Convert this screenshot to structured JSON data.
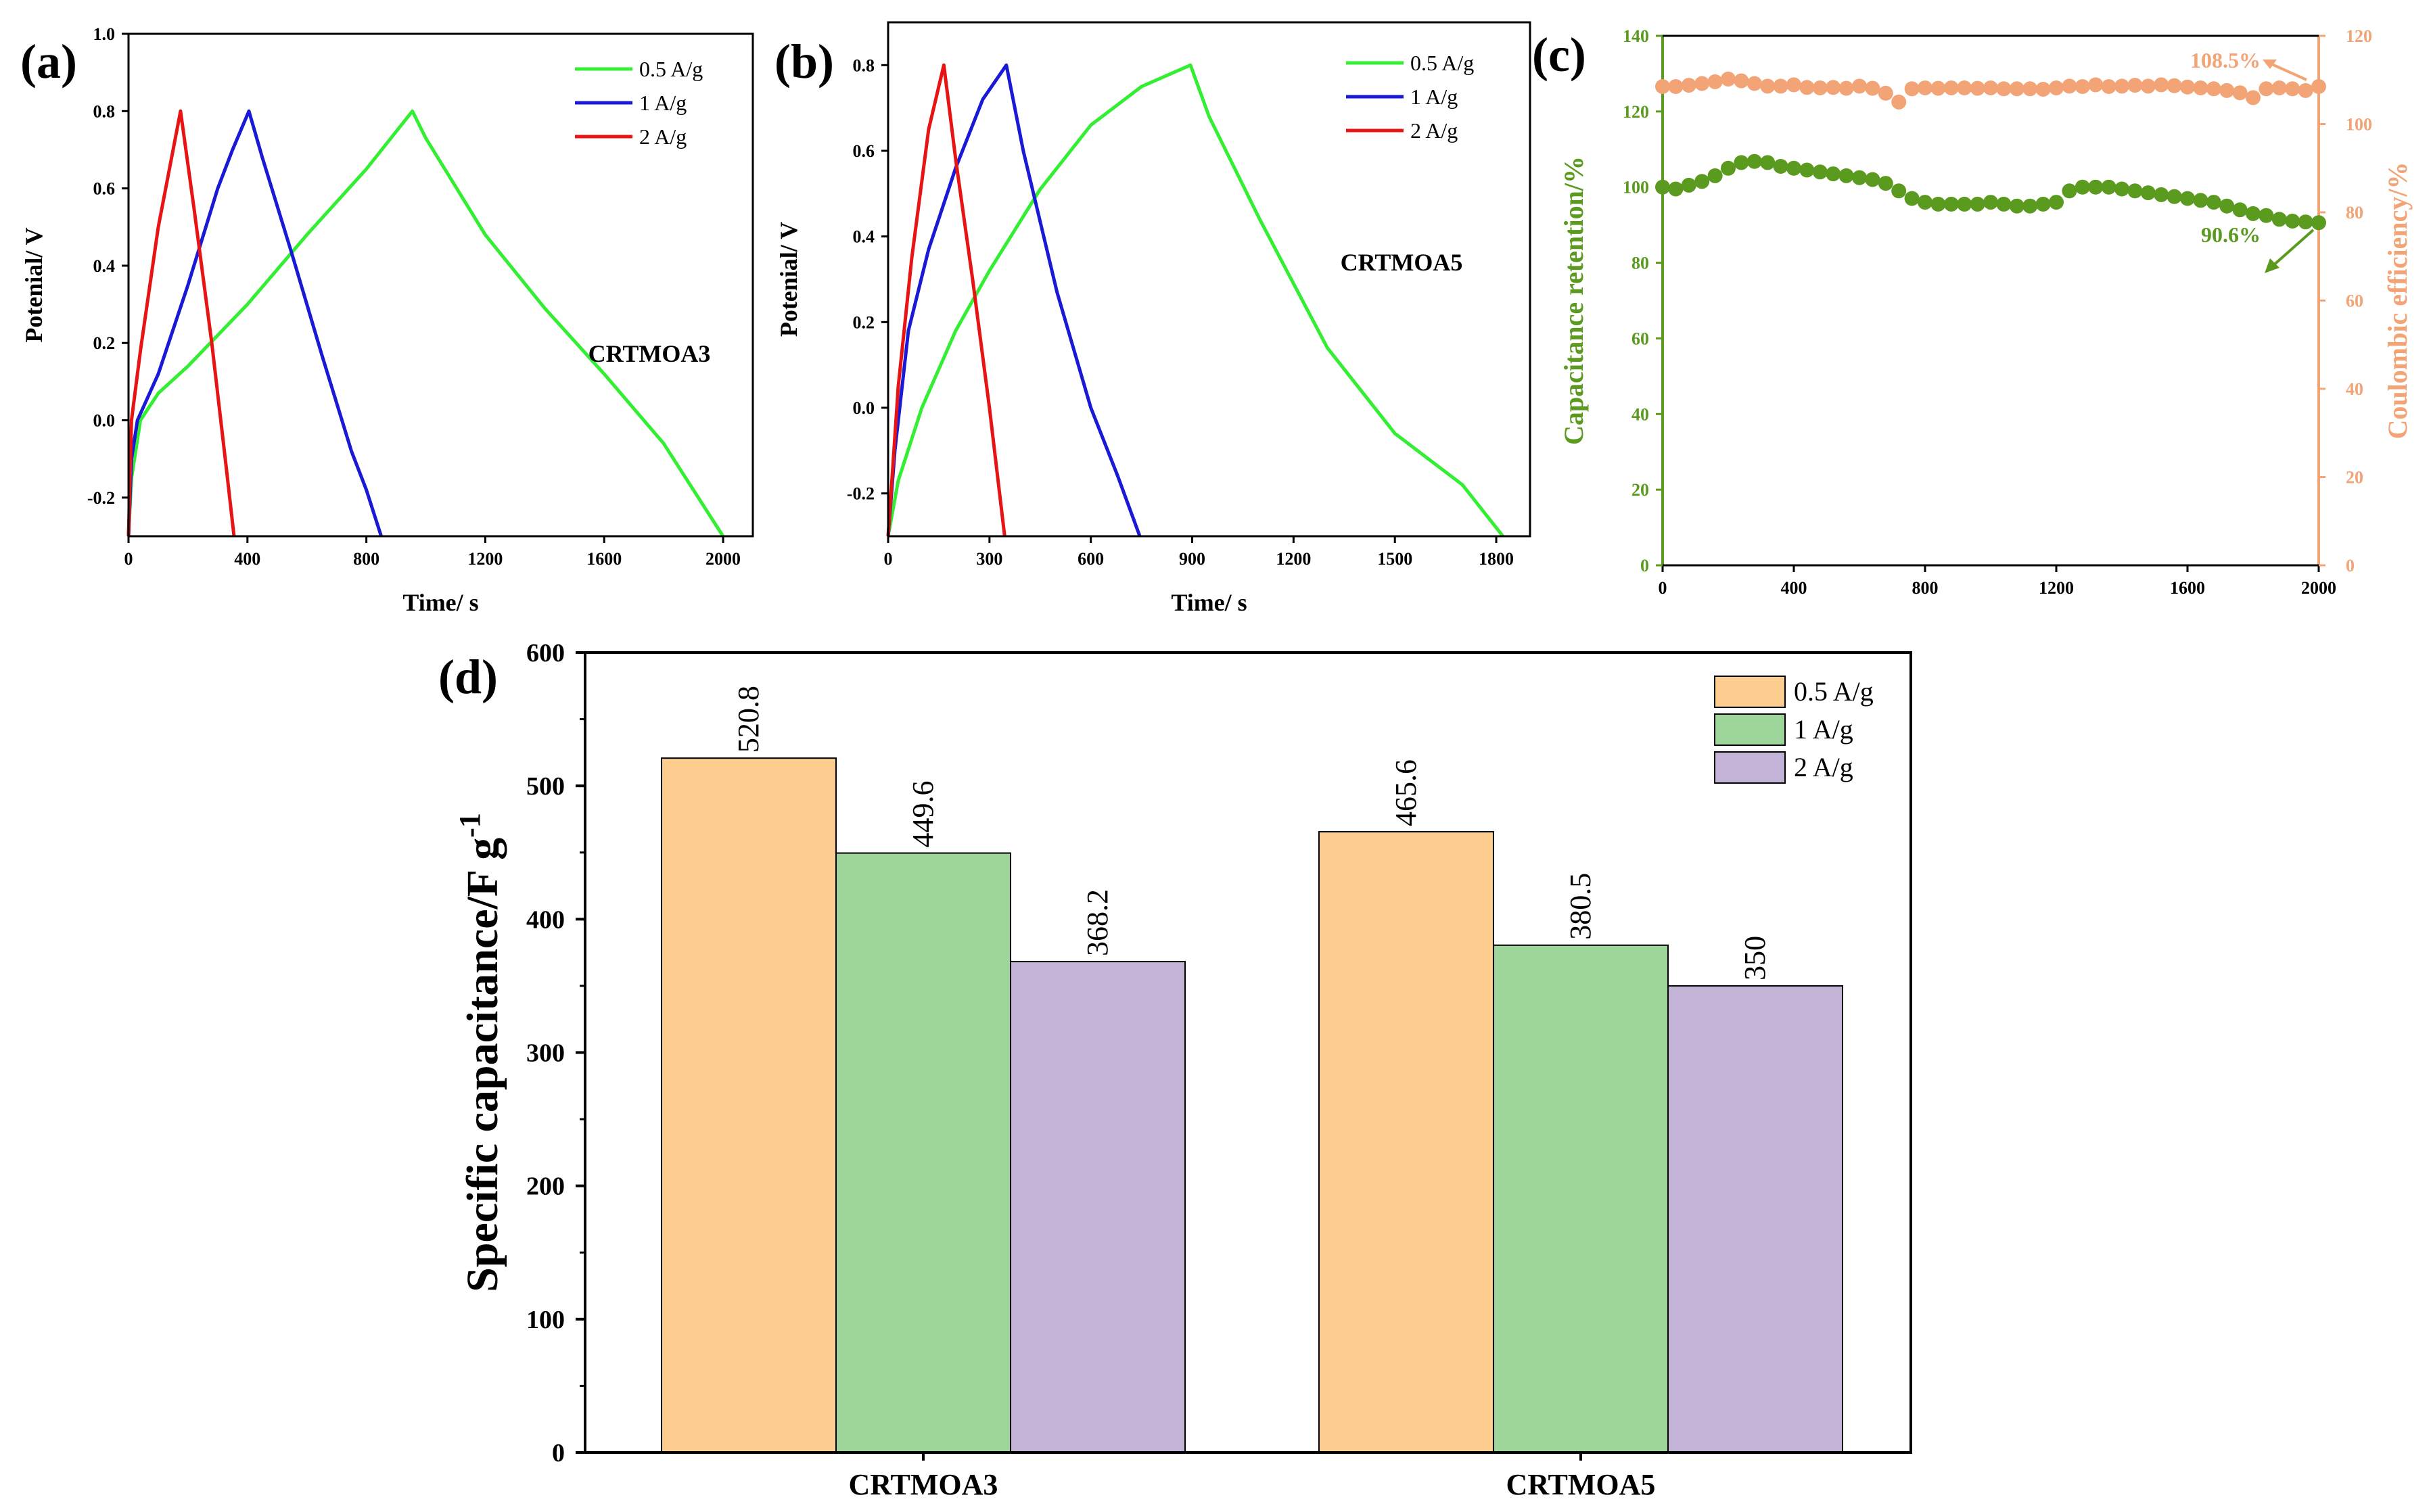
{
  "chart_data": [
    {
      "id": "a",
      "panel_label": "(a)",
      "type": "line",
      "xlabel": "Time/ s",
      "ylabel": "Potenial/ V",
      "xlim": [
        0,
        2100
      ],
      "ylim": [
        -0.3,
        1.0
      ],
      "xticks": [
        "0",
        "400",
        "800",
        "1200",
        "1600",
        "2000"
      ],
      "yticks": [
        "-0.2",
        "0.0",
        "0.2",
        "0.4",
        "0.6",
        "0.8",
        "1.0"
      ],
      "sample_label": "CRTMOA3",
      "series": [
        {
          "name": "0.5 A/g",
          "color": "#33ee33",
          "points": [
            [
              0,
              -0.3
            ],
            [
              10,
              -0.15
            ],
            [
              40,
              0.0
            ],
            [
              100,
              0.07
            ],
            [
              200,
              0.14
            ],
            [
              400,
              0.3
            ],
            [
              600,
              0.48
            ],
            [
              800,
              0.65
            ],
            [
              955,
              0.8
            ],
            [
              1000,
              0.73
            ],
            [
              1200,
              0.48
            ],
            [
              1400,
              0.29
            ],
            [
              1600,
              0.12
            ],
            [
              1800,
              -0.06
            ],
            [
              2000,
              -0.3
            ]
          ]
        },
        {
          "name": "1 A/g",
          "color": "#1a1ad6",
          "points": [
            [
              0,
              -0.3
            ],
            [
              10,
              -0.1
            ],
            [
              30,
              0.0
            ],
            [
              100,
              0.12
            ],
            [
              200,
              0.35
            ],
            [
              300,
              0.6
            ],
            [
              350,
              0.7
            ],
            [
              405,
              0.8
            ],
            [
              450,
              0.68
            ],
            [
              550,
              0.43
            ],
            [
              650,
              0.17
            ],
            [
              750,
              -0.08
            ],
            [
              800,
              -0.18
            ],
            [
              850,
              -0.3
            ]
          ]
        },
        {
          "name": "2 A/g",
          "color": "#e81414",
          "points": [
            [
              0,
              -0.3
            ],
            [
              10,
              0.0
            ],
            [
              40,
              0.18
            ],
            [
              100,
              0.5
            ],
            [
              175,
              0.8
            ],
            [
              220,
              0.55
            ],
            [
              280,
              0.2
            ],
            [
              330,
              -0.13
            ],
            [
              355,
              -0.3
            ]
          ]
        }
      ]
    },
    {
      "id": "b",
      "panel_label": "(b)",
      "type": "line",
      "xlabel": "Time/ s",
      "ylabel": "Potenial/ V",
      "xlim": [
        0,
        1900
      ],
      "ylim": [
        -0.3,
        0.9
      ],
      "xticks": [
        "0",
        "300",
        "600",
        "900",
        "1200",
        "1500",
        "1800"
      ],
      "yticks": [
        "-0.2",
        "0.0",
        "0.2",
        "0.4",
        "0.6",
        "0.8"
      ],
      "sample_label": "CRTMOA5",
      "series": [
        {
          "name": "0.5 A/g",
          "color": "#33ee33",
          "points": [
            [
              0,
              -0.3
            ],
            [
              30,
              -0.17
            ],
            [
              100,
              0.0
            ],
            [
              200,
              0.18
            ],
            [
              300,
              0.32
            ],
            [
              450,
              0.51
            ],
            [
              600,
              0.66
            ],
            [
              750,
              0.75
            ],
            [
              895,
              0.8
            ],
            [
              950,
              0.68
            ],
            [
              1100,
              0.44
            ],
            [
              1300,
              0.14
            ],
            [
              1500,
              -0.06
            ],
            [
              1700,
              -0.18
            ],
            [
              1820,
              -0.3
            ]
          ]
        },
        {
          "name": "1 A/g",
          "color": "#1a1ad6",
          "points": [
            [
              0,
              -0.3
            ],
            [
              20,
              -0.1
            ],
            [
              60,
              0.18
            ],
            [
              120,
              0.37
            ],
            [
              200,
              0.56
            ],
            [
              280,
              0.72
            ],
            [
              350,
              0.8
            ],
            [
              400,
              0.6
            ],
            [
              500,
              0.27
            ],
            [
              600,
              0.0
            ],
            [
              680,
              -0.16
            ],
            [
              745,
              -0.3
            ]
          ]
        },
        {
          "name": "2 A/g",
          "color": "#e81414",
          "points": [
            [
              0,
              -0.3
            ],
            [
              30,
              0.05
            ],
            [
              70,
              0.35
            ],
            [
              120,
              0.65
            ],
            [
              165,
              0.8
            ],
            [
              200,
              0.58
            ],
            [
              250,
              0.3
            ],
            [
              300,
              0.0
            ],
            [
              345,
              -0.3
            ]
          ]
        }
      ]
    },
    {
      "id": "c",
      "panel_label": "(c)",
      "type": "scatter",
      "xlabel": "",
      "xlim": [
        0,
        2000
      ],
      "xticks": [
        "0",
        "400",
        "800",
        "1200",
        "1600",
        "2000"
      ],
      "ylabel_left": "Capacitance retention/%",
      "ylim_left": [
        0,
        140
      ],
      "yticks_left": [
        "0",
        "20",
        "40",
        "60",
        "80",
        "100",
        "120",
        "140"
      ],
      "ylabel_right": "Coulombic efficiency/%",
      "ylim_right": [
        0,
        120
      ],
      "yticks_right": [
        "0",
        "20",
        "40",
        "60",
        "80",
        "100",
        "120"
      ],
      "color_left": "#5a9a1e",
      "color_right": "#f2a477",
      "annotation_left": "90.6%",
      "annotation_right": "108.5%",
      "x": [
        0,
        40,
        80,
        120,
        160,
        200,
        240,
        280,
        320,
        360,
        400,
        440,
        480,
        520,
        560,
        600,
        640,
        680,
        720,
        760,
        800,
        840,
        880,
        920,
        960,
        1000,
        1040,
        1080,
        1120,
        1160,
        1200,
        1240,
        1280,
        1320,
        1360,
        1400,
        1440,
        1480,
        1520,
        1560,
        1600,
        1640,
        1680,
        1720,
        1760,
        1800,
        1840,
        1880,
        1920,
        1960,
        2000
      ],
      "series": [
        {
          "name": "Capacitance retention",
          "axis": "left",
          "values": [
            100,
            99.5,
            100.5,
            101.5,
            103,
            105,
            106.5,
            106.8,
            106.5,
            105.5,
            105,
            104.5,
            104,
            103.5,
            103,
            102.5,
            102,
            101,
            99,
            97,
            96,
            95.5,
            95.5,
            95.5,
            95.5,
            96,
            95.5,
            95,
            95,
            95.5,
            96,
            99,
            100,
            100,
            100,
            99.5,
            99,
            98.5,
            98,
            97.5,
            97,
            96.5,
            96,
            95,
            94,
            93,
            92.5,
            91.5,
            91,
            90.8,
            90.6
          ]
        },
        {
          "name": "Coulombic efficiency",
          "axis": "right",
          "values": [
            108.5,
            108.5,
            108.8,
            109.2,
            109.6,
            110.2,
            109.8,
            109.2,
            108.6,
            108.6,
            108.9,
            108.3,
            108.2,
            108.3,
            108.1,
            108.6,
            108.1,
            107,
            105,
            108,
            108.2,
            108.1,
            108.2,
            108.2,
            108.1,
            108.2,
            108,
            108,
            108,
            107.9,
            108.2,
            108.6,
            108.5,
            108.9,
            108.5,
            108.6,
            108.8,
            108.6,
            108.9,
            108.7,
            108.4,
            108.2,
            108,
            107.6,
            107.1,
            106,
            108,
            108.2,
            108,
            107.6,
            108.5
          ]
        }
      ]
    },
    {
      "id": "d",
      "panel_label": "(d)",
      "type": "bar",
      "ylabel": "Specific capacitance/F g",
      "ylabel_sup": "-1",
      "ylim": [
        0,
        600
      ],
      "yticks": [
        "0",
        "100",
        "200",
        "300",
        "400",
        "500",
        "600"
      ],
      "categories": [
        "CRTMOA3",
        "CRTMOA5"
      ],
      "series": [
        {
          "name": "0.5 A/g",
          "color": "#fdcc8f",
          "values": [
            520.8,
            465.6
          ],
          "labels": [
            "520.8",
            "465.6"
          ]
        },
        {
          "name": "1 A/g",
          "color": "#9dd59a",
          "values": [
            449.6,
            380.5
          ],
          "labels": [
            "449.6",
            "380.5"
          ]
        },
        {
          "name": "2 A/g",
          "color": "#c3b3d6",
          "values": [
            368.2,
            350
          ],
          "labels": [
            "368.2",
            "350"
          ]
        }
      ]
    }
  ]
}
